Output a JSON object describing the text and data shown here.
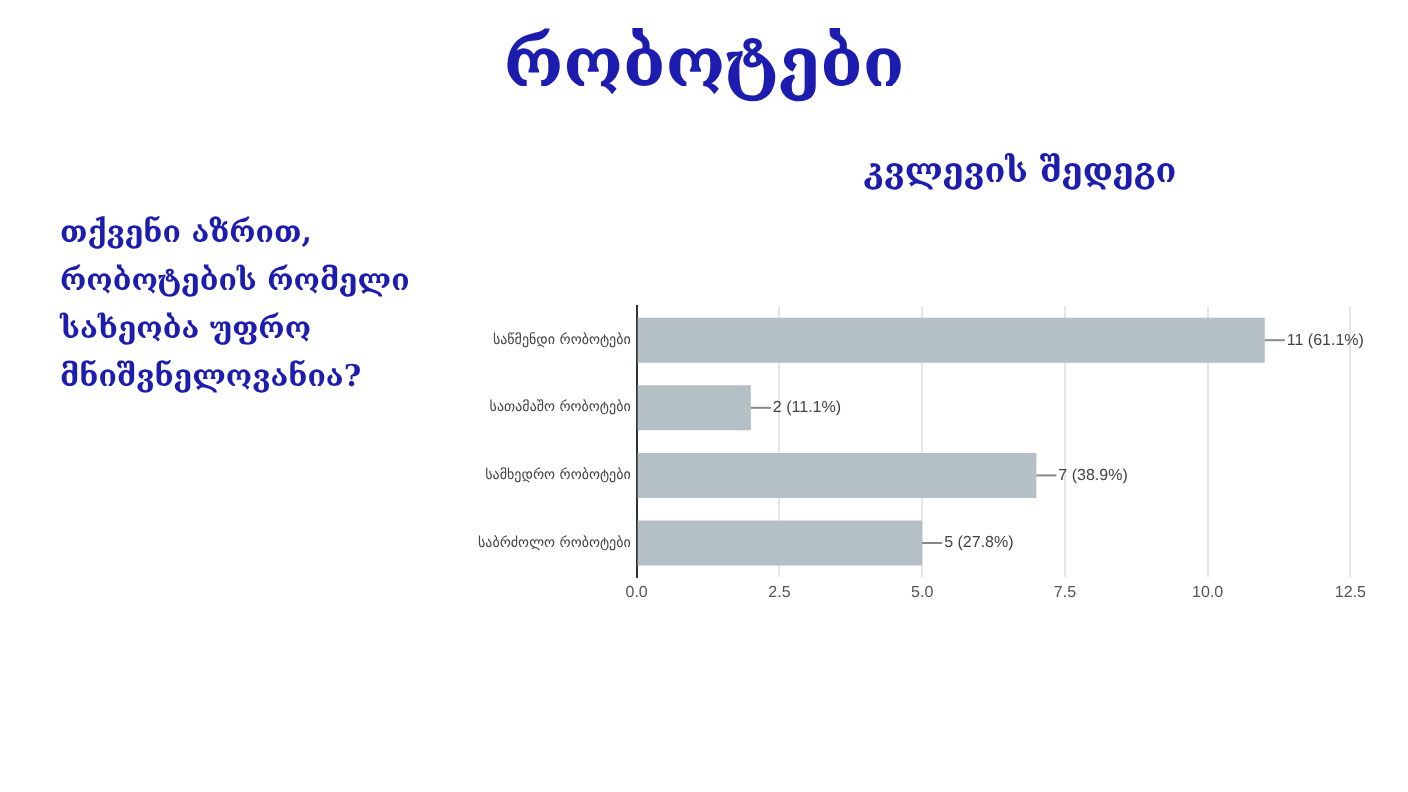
{
  "chart_data": {
    "type": "bar",
    "orientation": "horizontal",
    "title": "რობოტები",
    "subtitle": "კვლევის შედეგი",
    "annotations": [
      "თქვენი აზრით, რობოტების რომელი სახეობა უფრო მნიშვნელოვანია?"
    ],
    "categories": [
      "საწმენდი რობოტები",
      "სათამაშო რობოტები",
      "სამხედრო რობოტები",
      "საბრძოლო რობოტები"
    ],
    "values": [
      11,
      2,
      7,
      5
    ],
    "color": "#b4c0c6",
    "value_labels": [
      "11 (61.1%)",
      "2 (11.1%)",
      "7 (38.9%)",
      "5 (27.8%)"
    ],
    "xlim": [
      0,
      12.5
    ],
    "xticks": [
      {
        "value": 0,
        "label": "0.0"
      },
      {
        "value": 2.5,
        "label": "2.5"
      },
      {
        "value": 5,
        "label": "5.0"
      },
      {
        "value": 7.5,
        "label": "7.5"
      },
      {
        "value": 10,
        "label": "10.0"
      },
      {
        "value": 12.5,
        "label": "12.5"
      }
    ],
    "grid": "x"
  }
}
